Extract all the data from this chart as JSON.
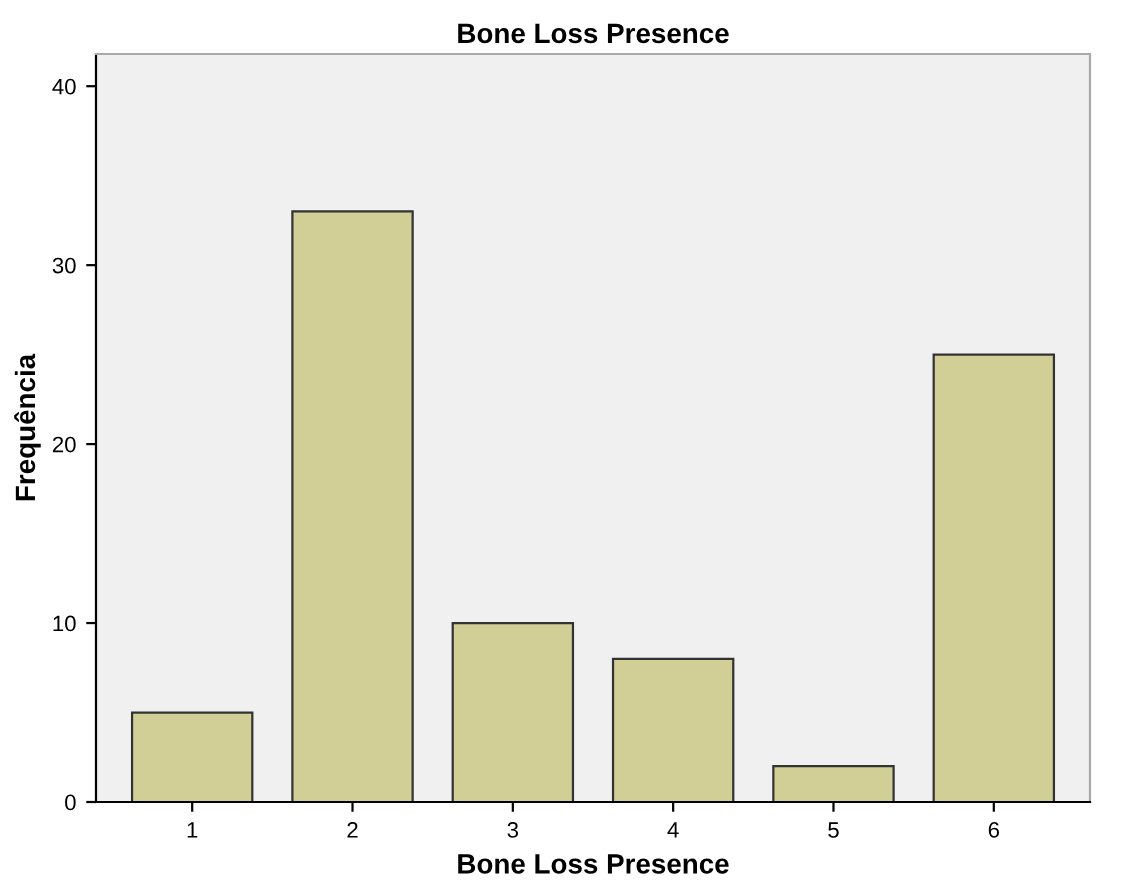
{
  "chart_data": {
    "type": "bar",
    "title": "Bone Loss Presence",
    "xlabel": "Bone Loss Presence",
    "ylabel": "Frequência",
    "categories": [
      "1",
      "2",
      "3",
      "4",
      "5",
      "6"
    ],
    "values": [
      5,
      33,
      10,
      8,
      2,
      25
    ],
    "color": "#d2cf96",
    "ylim": [
      0,
      41.8
    ],
    "yticks": [
      0,
      10,
      20,
      30,
      40
    ],
    "grid": false
  }
}
